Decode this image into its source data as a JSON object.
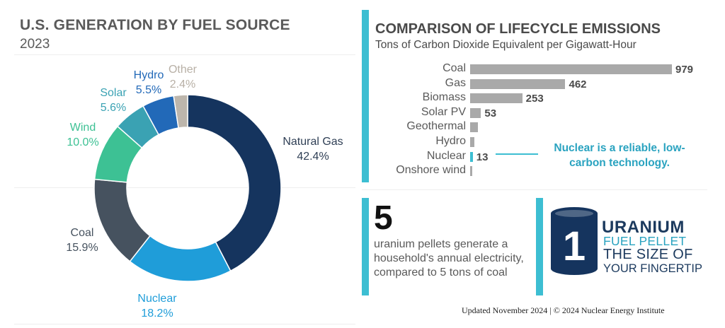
{
  "left": {
    "title": "U.S. GENERATION BY FUEL SOURCE",
    "year": "2023"
  },
  "right": {
    "title": "COMPARISON OF LIFECYCLE EMISSIONS",
    "subtitle": "Tons of Carbon Dioxide Equivalent per Gigawatt-Hour",
    "callout": "Nuclear is a reliable, low-carbon technology."
  },
  "pellet": {
    "number": "5",
    "text": "uranium pellets generate a household's annual electricity, compared to 5 tons of coal"
  },
  "uranium_logo": {
    "digit": "1",
    "word": "URANIUM",
    "fuel_pellet": "FUEL PELLET",
    "size_of": "THE SIZE OF",
    "fingertip": "YOUR FINGERTIP"
  },
  "footer": "Updated November 2024 | © 2024 Nuclear Energy Institute",
  "chart_data": [
    {
      "type": "pie",
      "title": "U.S. GENERATION BY FUEL SOURCE",
      "subtitle": "2023",
      "donut": true,
      "slices": [
        {
          "label": "Natural Gas",
          "value": 42.4,
          "display": "42.4%",
          "color": "#15345e",
          "label_color": "#2f3f55"
        },
        {
          "label": "Nuclear",
          "value": 18.2,
          "display": "18.2%",
          "color": "#1f9dd9",
          "label_color": "#1f9dd9"
        },
        {
          "label": "Coal",
          "value": 15.9,
          "display": "15.9%",
          "color": "#46525f",
          "label_color": "#46525f"
        },
        {
          "label": "Wind",
          "value": 10.0,
          "display": "10.0%",
          "color": "#3dc194",
          "label_color": "#3dc194"
        },
        {
          "label": "Solar",
          "value": 5.6,
          "display": "5.6%",
          "color": "#3aa2b3",
          "label_color": "#3aa2b3"
        },
        {
          "label": "Hydro",
          "value": 5.5,
          "display": "5.5%",
          "color": "#2269b8",
          "label_color": "#2269b8"
        },
        {
          "label": "Other",
          "value": 2.4,
          "display": "2.4%",
          "color": "#bdb6ac",
          "label_color": "#b8b0a6"
        }
      ]
    },
    {
      "type": "bar",
      "orientation": "horizontal",
      "title": "COMPARISON OF LIFECYCLE EMISSIONS",
      "subtitle": "Tons of Carbon Dioxide Equivalent per Gigawatt-Hour",
      "categories": [
        "Coal",
        "Gas",
        "Biomass",
        "Solar PV",
        "Geothermal",
        "Hydro",
        "Nuclear",
        "Onshore wind"
      ],
      "values": [
        979,
        462,
        253,
        53,
        38,
        21,
        13,
        11
      ],
      "value_labels": [
        "979",
        "462",
        "253",
        "53",
        "",
        "",
        "13",
        ""
      ],
      "highlight": "Nuclear",
      "colors": {
        "bar": "#a9a9a9",
        "highlight": "#3dbed2"
      },
      "xlim": [
        0,
        979
      ]
    }
  ]
}
